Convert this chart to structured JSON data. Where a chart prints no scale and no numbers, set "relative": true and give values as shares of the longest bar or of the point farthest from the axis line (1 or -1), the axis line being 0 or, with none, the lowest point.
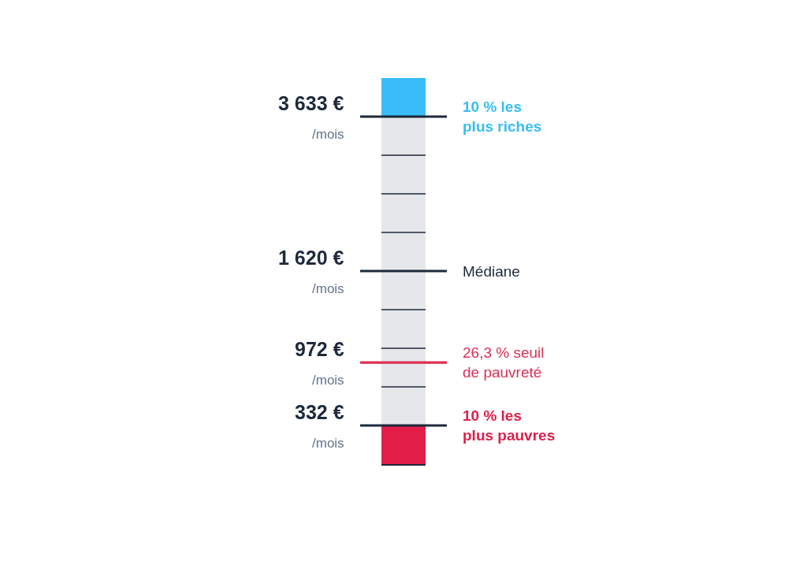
{
  "chart_data": {
    "type": "bar",
    "stacked": true,
    "relative": true,
    "categories": [
      null
    ],
    "series": [
      {
        "name": "10 % les plus pauvres",
        "color": "#e11d48",
        "values": [
          0.1
        ]
      },
      {
        "color": "#e5e7eb",
        "values": [
          0.8
        ]
      },
      {
        "name": "10 % les plus riches",
        "color": "#38bdf8",
        "values": [
          0.1
        ]
      }
    ],
    "ref_lines": [
      {
        "axis": "y",
        "value": 0.9,
        "label": "3 633 €\n/mois",
        "color": "#1e293b"
      },
      {
        "axis": "y",
        "value": 0.5,
        "label": "1 620 €\n/mois",
        "color": "#1e293b"
      },
      {
        "axis": "y",
        "value": 0.263,
        "label": "972 €\n/mois",
        "color": "#dc2f55"
      },
      {
        "axis": "y",
        "value": 0.1,
        "label": "332 €\n/mois",
        "color": "#1e293b"
      },
      {
        "axis": "y",
        "value": 0.2,
        "color": "#1e293b"
      },
      {
        "axis": "y",
        "value": 0.3,
        "color": "#1e293b"
      },
      {
        "axis": "y",
        "value": 0.4,
        "color": "#1e293b"
      },
      {
        "axis": "y",
        "value": 0.6,
        "color": "#1e293b"
      },
      {
        "axis": "y",
        "value": 0.7,
        "color": "#1e293b"
      },
      {
        "axis": "y",
        "value": 0.8,
        "color": "#1e293b"
      }
    ],
    "annotations": [
      "Médiane",
      "26,3 % seuil de pauvreté"
    ]
  }
}
